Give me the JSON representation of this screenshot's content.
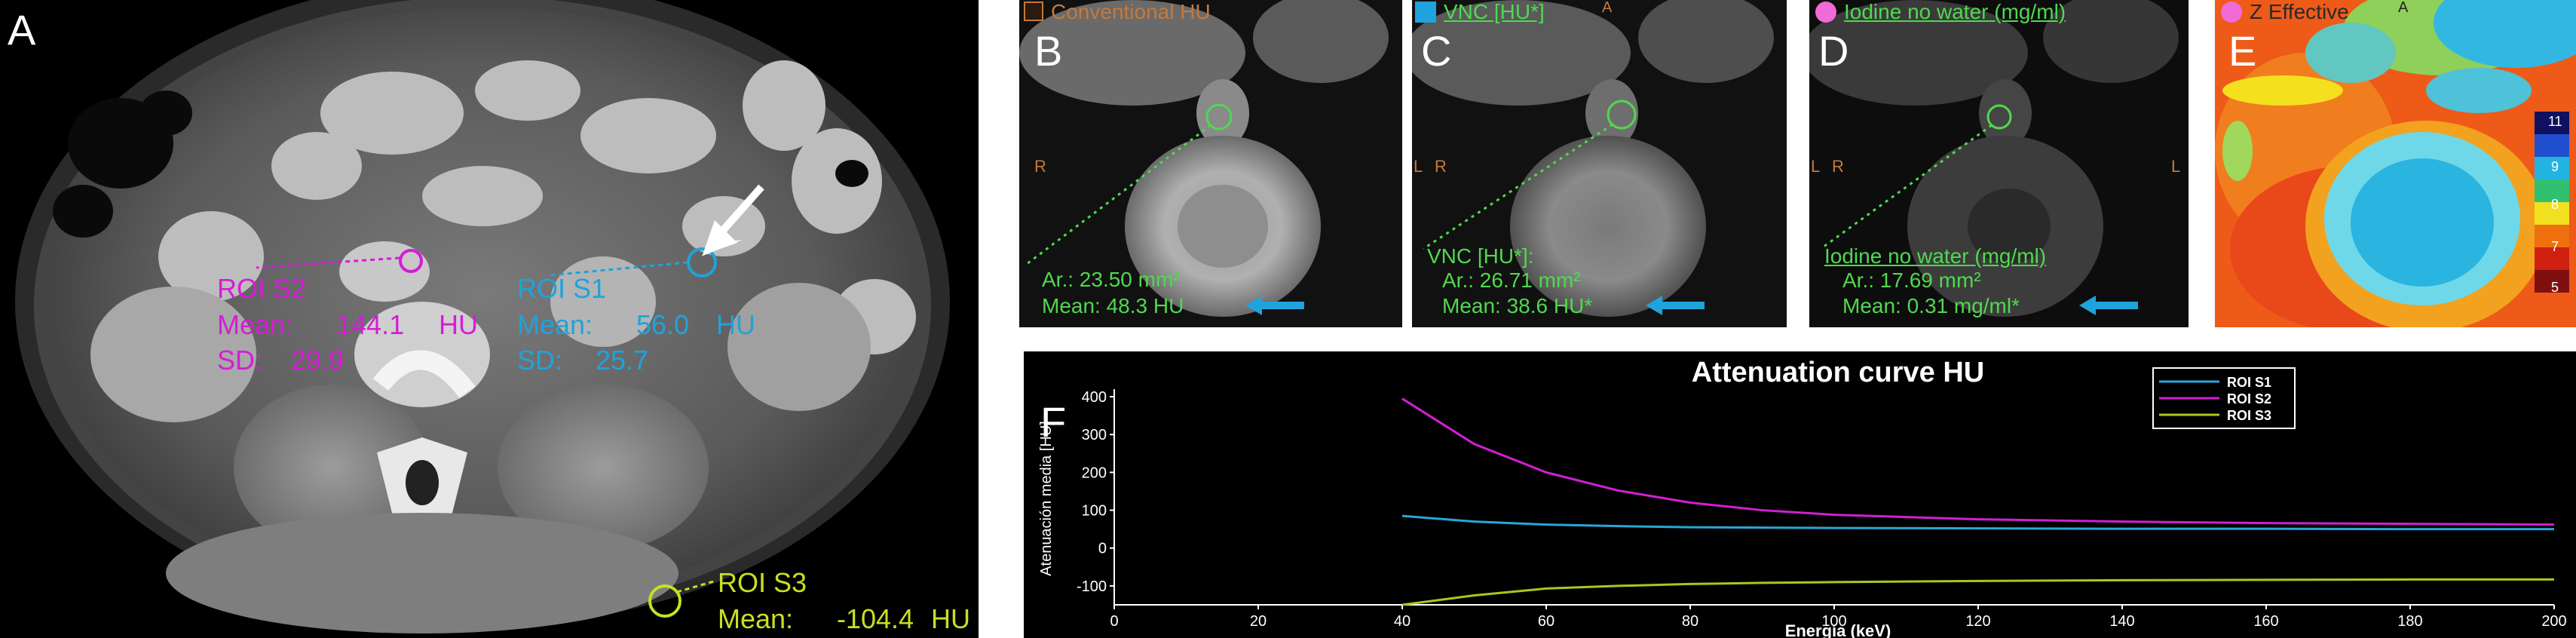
{
  "panels": {
    "a": {
      "letter": "A",
      "roi_s2": {
        "title": "ROI S2",
        "mean_label": "Mean:",
        "mean_value": "144.1",
        "mean_unit": "HU",
        "sd_label": "SD:",
        "sd_value": "29.9"
      },
      "roi_s1": {
        "title": "ROI S1",
        "mean_label": "Mean:",
        "mean_value": "56.0",
        "mean_unit": "HU",
        "sd_label": "SD:",
        "sd_value": "25.7"
      },
      "roi_s3": {
        "title": "ROI S3",
        "mean_label": "Mean:",
        "mean_value": "-104.4",
        "mean_unit": "HU"
      }
    },
    "b": {
      "letter": "B",
      "header": "Conventional HU",
      "orient_r": "R",
      "area": "Ar.: 23.50 mm²",
      "mean": "Mean:  48.3  HU"
    },
    "c": {
      "letter": "C",
      "header": "VNC [HU*]",
      "orient_top": "A",
      "orient_l": "L",
      "orient_r": "R",
      "label": "VNC [HU*]:",
      "area": "Ar.: 26.71 mm²",
      "mean": "Mean:  38.6  HU*"
    },
    "d": {
      "letter": "D",
      "header": "Iodine no water (mg/ml)",
      "orient_l": "L",
      "orient_r": "R",
      "label": "Iodine no water (mg/ml)",
      "area": "Ar.: 17.69 mm²",
      "mean": "Mean:  0.31  mg/ml*"
    },
    "e": {
      "letter": "E",
      "header": "Z Effective",
      "orient_top": "A",
      "scale_ticks": [
        "11",
        "9",
        "8",
        "7",
        "5"
      ]
    }
  },
  "chart_letter": "F",
  "chart_data": {
    "type": "line",
    "title": "Attenuation curve HU",
    "xlabel": "Energía (keV)",
    "ylabel": "Atenuación media [HU]",
    "xlim": [
      0,
      200
    ],
    "ylim": [
      -150,
      420
    ],
    "xticks": [
      0,
      20,
      40,
      60,
      80,
      100,
      120,
      140,
      160,
      180,
      200
    ],
    "yticks": [
      -100,
      0,
      100,
      200,
      300,
      400
    ],
    "x": [
      40,
      50,
      60,
      70,
      80,
      90,
      100,
      120,
      140,
      160,
      180,
      200
    ],
    "series": [
      {
        "name": "ROI S1",
        "color": "#2aa6d6",
        "values": [
          85,
          70,
          62,
          58,
          55,
          54,
          53,
          52,
          51,
          51,
          50,
          50
        ]
      },
      {
        "name": "ROI S2",
        "color": "#d020d0",
        "values": [
          395,
          275,
          200,
          152,
          120,
          100,
          88,
          76,
          70,
          66,
          64,
          62
        ]
      },
      {
        "name": "ROI S3",
        "color": "#a8c81e",
        "values": [
          -150,
          -125,
          -107,
          -100,
          -95,
          -92,
          -90,
          -87,
          -85,
          -84,
          -83,
          -83
        ]
      }
    ],
    "legend": "top-center",
    "grid": false
  }
}
